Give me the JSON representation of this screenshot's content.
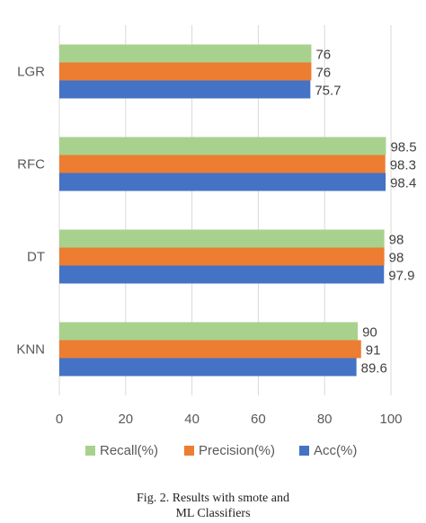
{
  "chart_data": {
    "type": "bar",
    "orientation": "horizontal",
    "categories": [
      "LGR",
      "RFC",
      "DT",
      "KNN"
    ],
    "series": [
      {
        "name": "Recall(%)",
        "color": "#a9d18e",
        "values": [
          76,
          98.5,
          98,
          90
        ],
        "labels": [
          "76",
          "98.5",
          "98",
          "90"
        ]
      },
      {
        "name": "Precision(%)",
        "color": "#ed7d31",
        "values": [
          76,
          98.3,
          98,
          91
        ],
        "labels": [
          "76",
          "98.3",
          "98",
          "91"
        ]
      },
      {
        "name": "Acc(%)",
        "color": "#4472c4",
        "values": [
          75.7,
          98.4,
          97.9,
          89.6
        ],
        "labels": [
          "75.7",
          "98.4",
          "97.9",
          "89.6"
        ]
      }
    ],
    "xticks": [
      "0",
      "20",
      "40",
      "60",
      "80",
      "100"
    ],
    "xlim": [
      0,
      100
    ],
    "grid": true,
    "legend": "bottom",
    "title": "",
    "xlabel": "",
    "ylabel": ""
  },
  "caption": {
    "line1": "Fig. 2.  Results with smote and",
    "line2": "ML Classifiers"
  }
}
